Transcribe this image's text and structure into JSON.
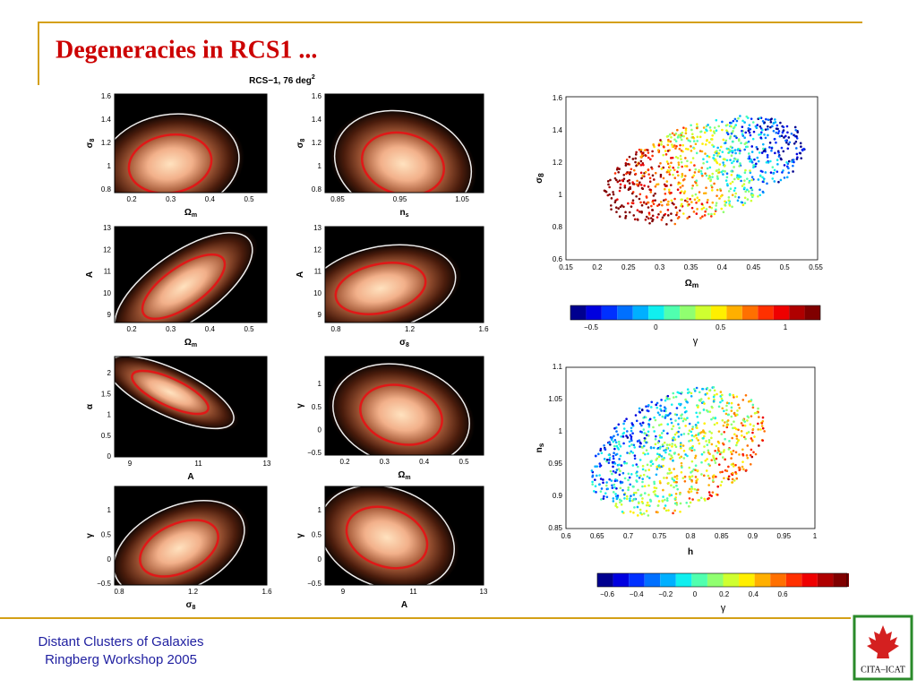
{
  "title": "Degeneracies in RCS1 ...",
  "figure_title": {
    "base": "RCS−1, 76 deg",
    "sup": "2"
  },
  "panels": [
    {
      "xlabel": {
        "base": "Ω",
        "sub": "m"
      },
      "ylabel": {
        "base": "σ",
        "sub": "8"
      },
      "xticks": [
        "0.2",
        "0.3",
        "0.4",
        "0.5"
      ],
      "yticks": [
        "1.6",
        "1.4",
        "1.2",
        "1",
        "0.8"
      ]
    },
    {
      "xlabel": {
        "base": "n",
        "sub": "s"
      },
      "ylabel": {
        "base": "σ",
        "sub": "8"
      },
      "xticks": [
        "0.85",
        "0.95",
        "1.05"
      ],
      "yticks": [
        "1.6",
        "1.4",
        "1.2",
        "1",
        "0.8"
      ]
    },
    {
      "xlabel": {
        "base": "Ω",
        "sub": "m"
      },
      "ylabel": {
        "base": "A",
        "sub": ""
      },
      "xticks": [
        "0.2",
        "0.3",
        "0.4",
        "0.5"
      ],
      "yticks": [
        "13",
        "12",
        "11",
        "10",
        "9"
      ]
    },
    {
      "xlabel": {
        "base": "σ",
        "sub": "8"
      },
      "ylabel": {
        "base": "A",
        "sub": ""
      },
      "xticks": [
        "0.8",
        "1.2",
        "1.6"
      ],
      "yticks": [
        "13",
        "12",
        "11",
        "10",
        "9"
      ]
    },
    {
      "xlabel": {
        "base": "A",
        "sub": ""
      },
      "ylabel": {
        "base": "α",
        "sub": ""
      },
      "xticks": [
        "9",
        "11",
        "13"
      ],
      "yticks": [
        "2",
        "1.5",
        "1",
        "0.5",
        "0"
      ]
    },
    {
      "xlabel": {
        "base": "Ω",
        "sub": "m"
      },
      "ylabel": {
        "base": "γ",
        "sub": ""
      },
      "xticks": [
        "0.2",
        "0.3",
        "0.4",
        "0.5"
      ],
      "yticks": [
        "1",
        "0.5",
        "0",
        "−0.5"
      ]
    },
    {
      "xlabel": {
        "base": "σ",
        "sub": "8"
      },
      "ylabel": {
        "base": "γ",
        "sub": ""
      },
      "xticks": [
        "0.8",
        "1.2",
        "1.6"
      ],
      "yticks": [
        "1",
        "0.5",
        "0",
        "−0.5"
      ]
    },
    {
      "xlabel": {
        "base": "A",
        "sub": ""
      },
      "ylabel": {
        "base": "γ",
        "sub": ""
      },
      "xticks": [
        "9",
        "11",
        "13"
      ],
      "yticks": [
        "1",
        "0.5",
        "0",
        "−0.5"
      ]
    }
  ],
  "scatters": [
    {
      "xlabel": {
        "base": "Ω",
        "sub": "m"
      },
      "ylabel": {
        "base": "σ",
        "sub": "8"
      },
      "xticks": [
        "0.15",
        "0.2",
        "0.25",
        "0.3",
        "0.35",
        "0.4",
        "0.45",
        "0.5",
        "0.55"
      ],
      "yticks": [
        "1.6",
        "1.4",
        "1.2",
        "1",
        "0.8",
        "0.6"
      ],
      "colorbar_label": "γ",
      "colorbar_ticks": [
        "−0.5",
        "0",
        "0.5",
        "1"
      ]
    },
    {
      "xlabel": {
        "base": "h",
        "sub": ""
      },
      "ylabel": {
        "base": "n",
        "sub": "s"
      },
      "xticks": [
        "0.6",
        "0.65",
        "0.7",
        "0.75",
        "0.8",
        "0.85",
        "0.9",
        "0.95",
        "1"
      ],
      "yticks": [
        "1.1",
        "1.05",
        "1",
        "0.95",
        "0.9",
        "0.85"
      ],
      "colorbar_label": "γ",
      "colorbar_ticks": [
        "−0.6",
        "−0.4",
        "−0.2",
        "0",
        "0.2",
        "0.4",
        "0.6"
      ]
    }
  ],
  "footer": [
    "Distant Clusters of Galaxies",
    "Ringberg Workshop 2005"
  ],
  "logo": "CITA–ICAT"
}
